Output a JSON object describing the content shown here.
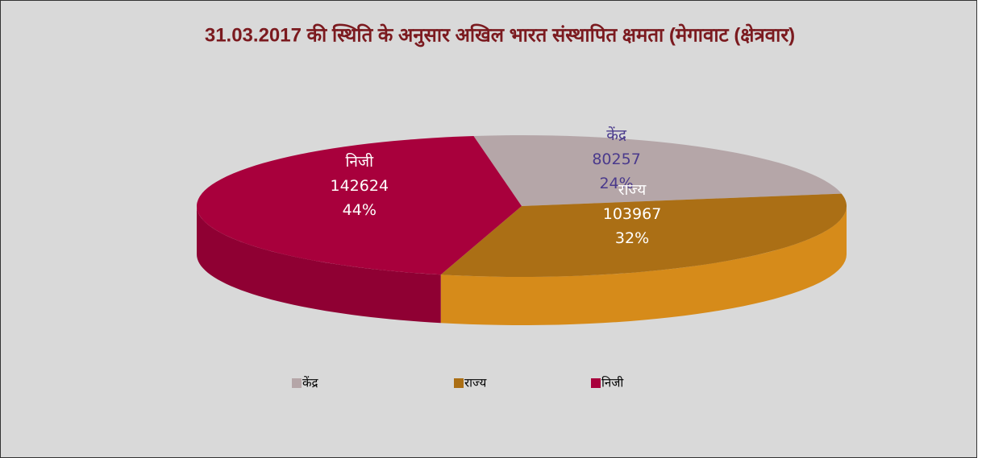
{
  "chart_data": {
    "type": "pie3d",
    "title": "31.03.2017 की स्थिति के अनुसार अखिल भारत संस्थापित क्षमता (मेगावाट (क्षेत्रवार)",
    "categories": [
      "केंद्र",
      "राज्य",
      "निजी"
    ],
    "values": [
      80257,
      103967,
      142624
    ],
    "percent_labels": [
      "24%",
      "32%",
      "44%"
    ],
    "colors": [
      "#b5a6a8",
      "#ab6f15",
      "#a8003c"
    ],
    "legend": "bottom"
  }
}
